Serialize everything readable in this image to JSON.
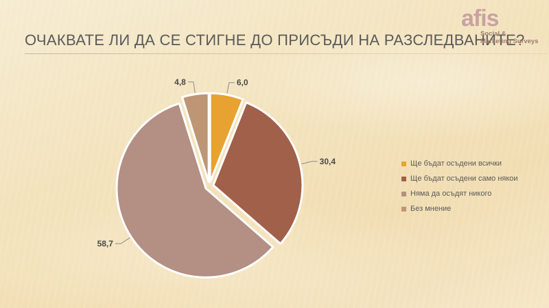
{
  "slide": {
    "title": "Очаквате ли да се стигне до присъди на разследваните?"
  },
  "logo": {
    "mark": "afis",
    "line1": "Social &",
    "line2": "Marketing Surveys"
  },
  "chart_data": {
    "type": "pie",
    "title": "Очаквате ли да се стигне до присъди на разследваните?",
    "categories": [
      "Ще бъдат осъдени всички",
      "Ще бъдат осъдени само някои",
      "Няма да осъдят никого",
      "Без мнение"
    ],
    "values": [
      6.0,
      30.4,
      58.7,
      4.8
    ],
    "value_labels": [
      "6,0",
      "30,4",
      "58,7",
      "4,8"
    ],
    "colors": [
      "#e8a232",
      "#a0604a",
      "#b38f84",
      "#be9675"
    ],
    "legend_position": "right",
    "exploded": true,
    "start_angle": "top, clockwise"
  }
}
